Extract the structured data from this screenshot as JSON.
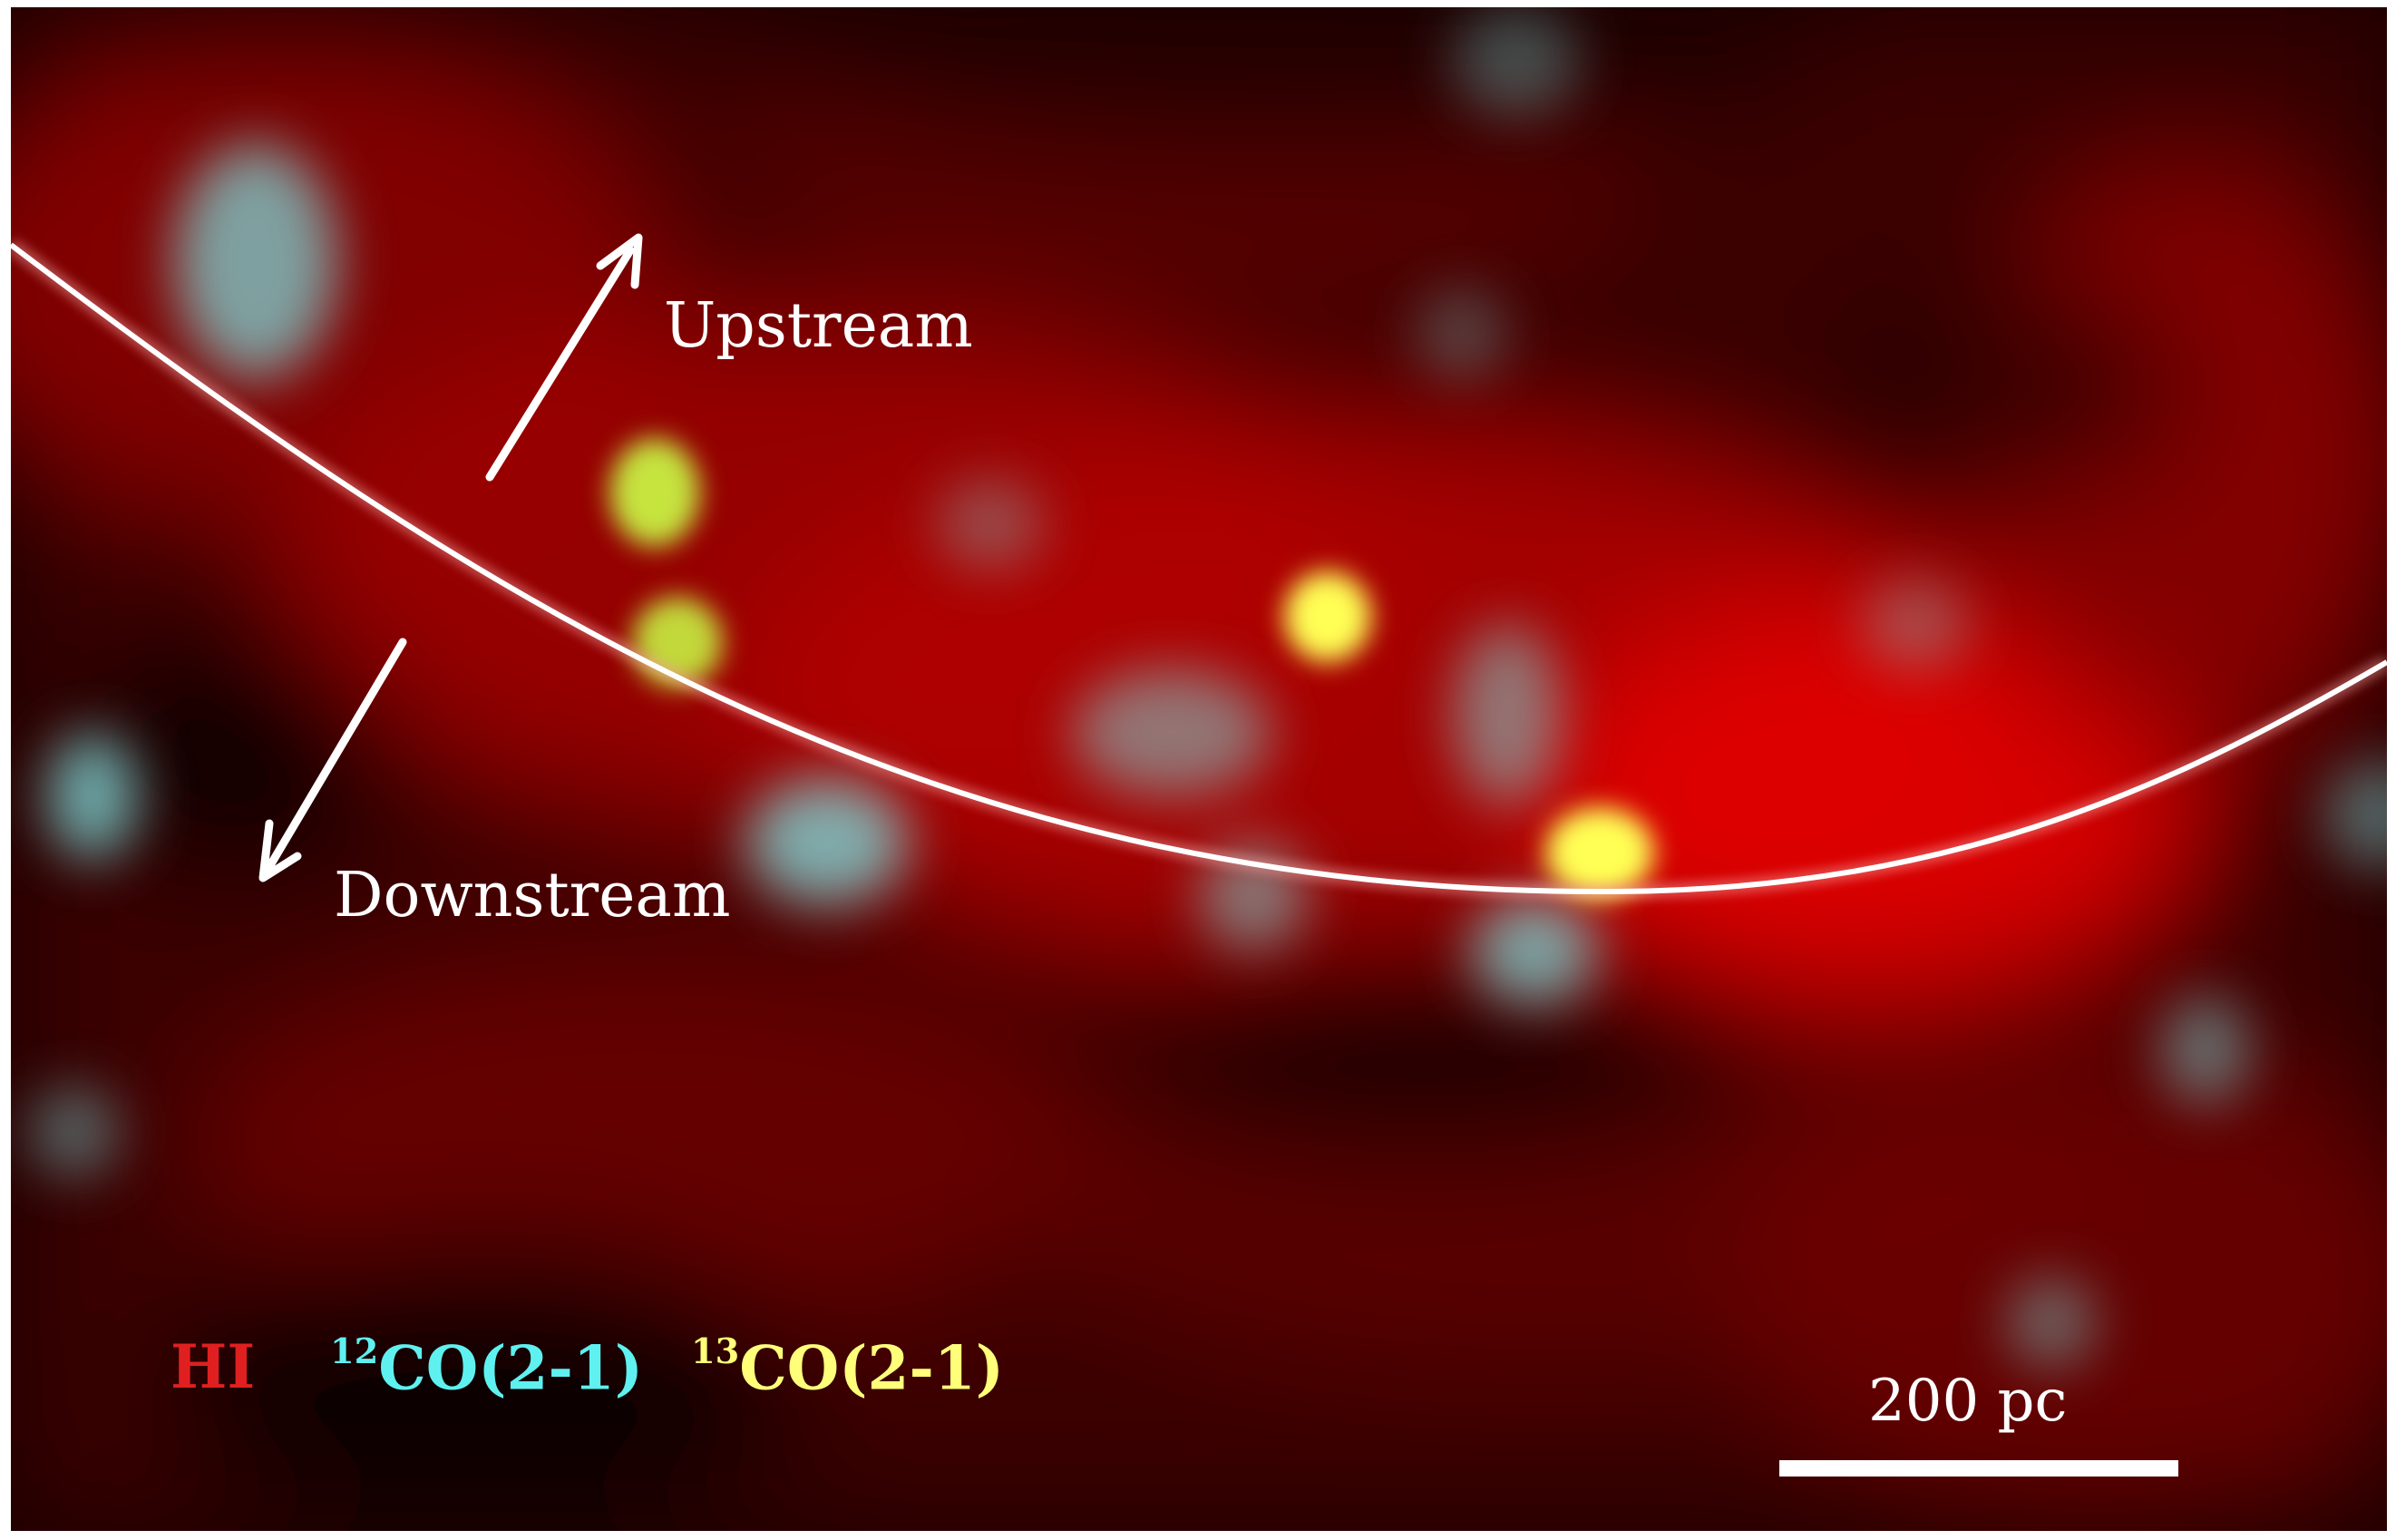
{
  "annotations": {
    "upstream": "Upstream",
    "downstream": "Downstream"
  },
  "legend": {
    "hi": {
      "text": "HI",
      "color": "#e02020"
    },
    "co12": {
      "sup": "12",
      "text": "CO(2-1)",
      "color": "#5ff0f0"
    },
    "co13": {
      "sup": "13",
      "text": "CO(2-1)",
      "color": "#ffff7a"
    }
  },
  "scale_bar": {
    "label": "200 pc"
  },
  "colors": {
    "hi_emission": "#c00000",
    "co12_emission": "#7fd6d6",
    "co13_emission": "#ffff55",
    "spiral_arm": "#ffffff"
  }
}
